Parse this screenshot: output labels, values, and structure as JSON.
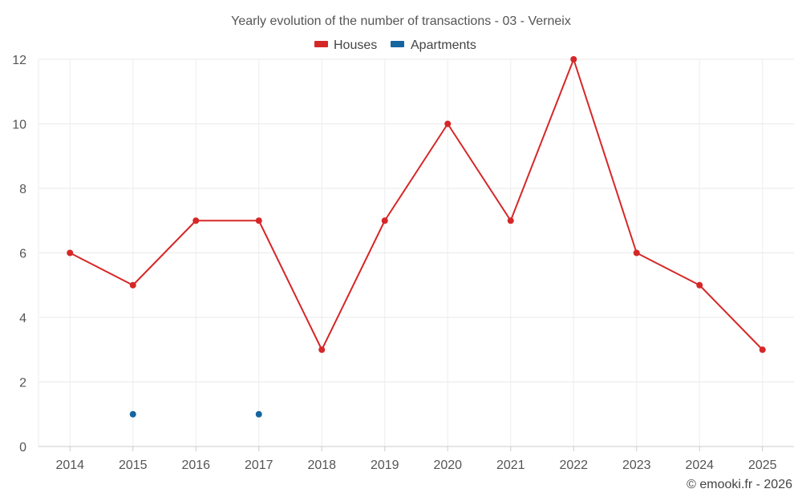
{
  "chart_data": {
    "type": "line",
    "title": "Yearly evolution of the number of transactions - 03 - Verneix",
    "categories": [
      "2014",
      "2015",
      "2016",
      "2017",
      "2018",
      "2019",
      "2020",
      "2021",
      "2022",
      "2023",
      "2024",
      "2025"
    ],
    "ylim": [
      0,
      12
    ],
    "yticks": [
      0,
      2,
      4,
      6,
      8,
      10,
      12
    ],
    "grid": true,
    "legend_position": "top-center",
    "series": [
      {
        "name": "Houses",
        "color": "#d62728",
        "values": [
          6,
          5,
          7,
          7,
          3,
          7,
          10,
          7,
          12,
          6,
          5,
          3
        ]
      },
      {
        "name": "Apartments",
        "color": "#1565a0",
        "values": [
          null,
          1,
          null,
          1,
          null,
          null,
          null,
          null,
          null,
          null,
          null,
          null
        ]
      }
    ],
    "credit": "© emooki.fr - 2026"
  }
}
